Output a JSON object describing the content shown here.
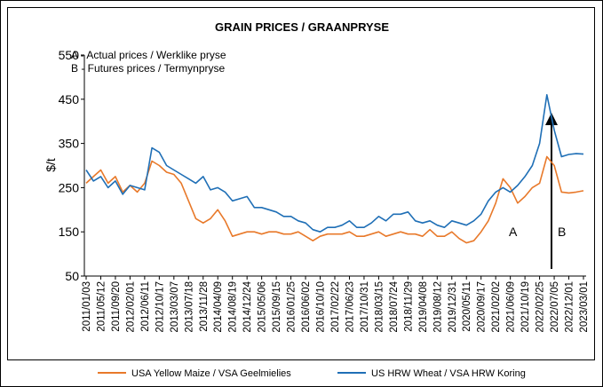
{
  "chart_data": {
    "type": "line",
    "title": "GRAIN PRICES / GRAANPRYSE",
    "y_label": "$/t",
    "annotations": [
      "A - Actual prices / Werklike pryse",
      "B - Futures  prices / Termynpryse",
      "A",
      "B"
    ],
    "categories": [
      "2011/01/03",
      null,
      "2011/05/12",
      null,
      "2011/09/20",
      null,
      "2012/02/01",
      null,
      "2012/06/11",
      null,
      "2012/10/17",
      null,
      "2013/03/07",
      null,
      "2013/07/18",
      null,
      "2013/11/28",
      null,
      "2014/04/09",
      null,
      "2014/08/19",
      null,
      "2014/12/24",
      null,
      "2015/05/06",
      null,
      "2015/09/15",
      null,
      "2016/01/25",
      null,
      "2016/06/02",
      null,
      "2016/10/10",
      null,
      "2017/02/22",
      null,
      "2017/06/23",
      null,
      "2017/10/31",
      null,
      "2018/03/15",
      null,
      "2018/07/24",
      null,
      "2018/11/29",
      null,
      "2019/04/08",
      null,
      "2019/08/12",
      null,
      "2019/12/31",
      null,
      "2020/05/11",
      null,
      "2020/09/17",
      null,
      "2021/02/02",
      null,
      "2021/06/09",
      null,
      "2021/10/19",
      null,
      "2022/02/25",
      null,
      "2022/07/05",
      null,
      "2022/12/01",
      null,
      "2023/03/01"
    ],
    "series": [
      {
        "name": "USA Yellow Maize / VSA Geelmielies",
        "color": "#e8792a",
        "values": [
          260,
          275,
          290,
          260,
          275,
          240,
          255,
          240,
          260,
          310,
          300,
          285,
          280,
          260,
          220,
          180,
          170,
          180,
          200,
          175,
          140,
          145,
          150,
          150,
          145,
          150,
          150,
          145,
          145,
          150,
          140,
          130,
          140,
          145,
          145,
          145,
          150,
          140,
          140,
          145,
          150,
          140,
          145,
          150,
          145,
          145,
          140,
          155,
          140,
          140,
          150,
          135,
          125,
          130,
          150,
          175,
          215,
          270,
          250,
          215,
          230,
          250,
          260,
          320,
          300,
          240,
          238,
          240,
          243
        ]
      },
      {
        "name": "US HRW Wheat / VSA HRW Koring",
        "color": "#1f6fb6",
        "values": [
          290,
          265,
          275,
          250,
          265,
          235,
          255,
          250,
          245,
          340,
          330,
          300,
          290,
          280,
          270,
          260,
          275,
          245,
          250,
          240,
          220,
          225,
          230,
          205,
          205,
          200,
          195,
          185,
          185,
          175,
          170,
          155,
          150,
          160,
          160,
          165,
          175,
          160,
          160,
          170,
          185,
          175,
          190,
          190,
          195,
          175,
          170,
          175,
          165,
          160,
          175,
          170,
          165,
          175,
          190,
          220,
          240,
          250,
          240,
          255,
          275,
          300,
          350,
          460,
          380,
          320,
          325,
          327,
          326
        ]
      }
    ],
    "ylim": [
      50,
      550
    ],
    "yticks": [
      50,
      150,
      250,
      350,
      450,
      550
    ],
    "grid": false,
    "legend": "bottom"
  }
}
